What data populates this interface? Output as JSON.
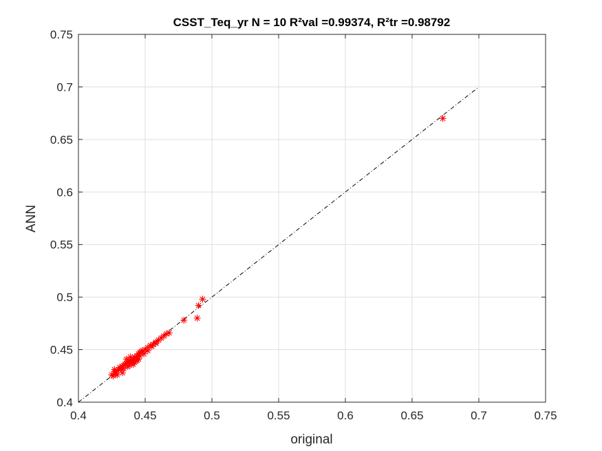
{
  "chart_data": {
    "type": "scatter",
    "title": "CSST_Teq_yr  N = 10 R²val =0.99374, R²tr =0.98792",
    "xlabel": "original",
    "ylabel": "ANN",
    "xlim": [
      0.4,
      0.75
    ],
    "ylim": [
      0.4,
      0.75
    ],
    "xticks": [
      "0.4",
      "0.45",
      "0.5",
      "0.55",
      "0.6",
      "0.65",
      "0.7",
      "0.75"
    ],
    "yticks": [
      "0.4",
      "0.45",
      "0.5",
      "0.55",
      "0.6",
      "0.65",
      "0.7",
      "0.75"
    ],
    "grid": true,
    "legend": "none",
    "series": [
      {
        "marker": "asterisk",
        "color": "#ff0000",
        "x": [
          0.425,
          0.426,
          0.427,
          0.428,
          0.429,
          0.43,
          0.431,
          0.432,
          0.433,
          0.434,
          0.435,
          0.436,
          0.437,
          0.438,
          0.439,
          0.44,
          0.441,
          0.442,
          0.443,
          0.444,
          0.445,
          0.446,
          0.447,
          0.448,
          0.45,
          0.452,
          0.454,
          0.456,
          0.458,
          0.46,
          0.462,
          0.464,
          0.466,
          0.468,
          0.427,
          0.431,
          0.434,
          0.437,
          0.44,
          0.443,
          0.446,
          0.449,
          0.452,
          0.455,
          0.458,
          0.436,
          0.439,
          0.442,
          0.445,
          0.429,
          0.433,
          0.438,
          0.441,
          0.444,
          0.479,
          0.489,
          0.49,
          0.493,
          0.673
        ],
        "y": [
          0.426,
          0.425,
          0.429,
          0.427,
          0.43,
          0.431,
          0.433,
          0.432,
          0.434,
          0.435,
          0.436,
          0.437,
          0.438,
          0.439,
          0.44,
          0.439,
          0.441,
          0.443,
          0.442,
          0.444,
          0.446,
          0.447,
          0.448,
          0.449,
          0.45,
          0.452,
          0.454,
          0.455,
          0.457,
          0.459,
          0.461,
          0.463,
          0.465,
          0.466,
          0.431,
          0.433,
          0.432,
          0.434,
          0.437,
          0.439,
          0.444,
          0.446,
          0.449,
          0.453,
          0.456,
          0.441,
          0.443,
          0.438,
          0.441,
          0.426,
          0.428,
          0.435,
          0.436,
          0.44,
          0.478,
          0.48,
          0.492,
          0.498,
          0.67
        ]
      },
      {
        "name": "",
        "line_style": "dash-dot",
        "color": "#000000",
        "x": [
          0.4,
          0.7
        ],
        "y": [
          0.4,
          0.7
        ]
      }
    ]
  }
}
